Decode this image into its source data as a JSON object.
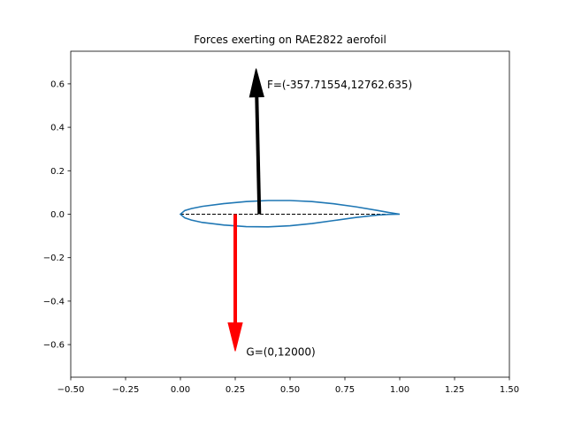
{
  "chart_data": {
    "type": "line",
    "title": "Forces exerting on RAE2822 aerofoil",
    "xlabel": "",
    "ylabel": "",
    "xlim": [
      -0.5,
      1.5
    ],
    "ylim": [
      -0.75,
      0.75
    ],
    "xticks": [
      -0.5,
      -0.25,
      0.0,
      0.25,
      0.5,
      0.75,
      1.0,
      1.25,
      1.5
    ],
    "xtick_labels": [
      "−0.50",
      "−0.25",
      "0.00",
      "0.25",
      "0.50",
      "0.75",
      "1.00",
      "1.25",
      "1.50"
    ],
    "yticks": [
      -0.6,
      -0.4,
      -0.2,
      0.0,
      0.2,
      0.4,
      0.6
    ],
    "ytick_labels": [
      "−0.6",
      "−0.4",
      "−0.2",
      "0.0",
      "0.2",
      "0.4",
      "0.6"
    ],
    "grid": false,
    "series": [
      {
        "color": "#1f77b4",
        "x": [
          1.0,
          0.95,
          0.9,
          0.8,
          0.7,
          0.6,
          0.5,
          0.4,
          0.3,
          0.2,
          0.1,
          0.05,
          0.02,
          0.0,
          0.02,
          0.05,
          0.1,
          0.2,
          0.3,
          0.4,
          0.5,
          0.6,
          0.7,
          0.8,
          0.9,
          0.95,
          1.0
        ],
        "y": [
          0.0,
          0.008,
          0.017,
          0.034,
          0.048,
          0.058,
          0.063,
          0.063,
          0.058,
          0.049,
          0.036,
          0.026,
          0.017,
          0.0,
          -0.017,
          -0.027,
          -0.038,
          -0.05,
          -0.057,
          -0.058,
          -0.053,
          -0.043,
          -0.029,
          -0.015,
          -0.004,
          -0.001,
          0.0
        ]
      }
    ],
    "chord_line": {
      "x": [
        0.0,
        1.0
      ],
      "y": [
        0.0,
        0.0
      ],
      "color": "#000000",
      "style": "dashed"
    },
    "arrows": [
      {
        "label": "F=(-357.71554,12762.635)",
        "color": "#000000",
        "x_start": 0.36,
        "y_start": 0.0,
        "x_end": 0.345,
        "y_end": 0.67,
        "label_x": 0.395,
        "label_y": 0.6
      },
      {
        "label": "G=(0,12000)",
        "color": "#ff0000",
        "x_start": 0.25,
        "y_start": 0.0,
        "x_end": 0.25,
        "y_end": -0.63,
        "label_x": 0.3,
        "label_y": -0.63
      }
    ]
  }
}
